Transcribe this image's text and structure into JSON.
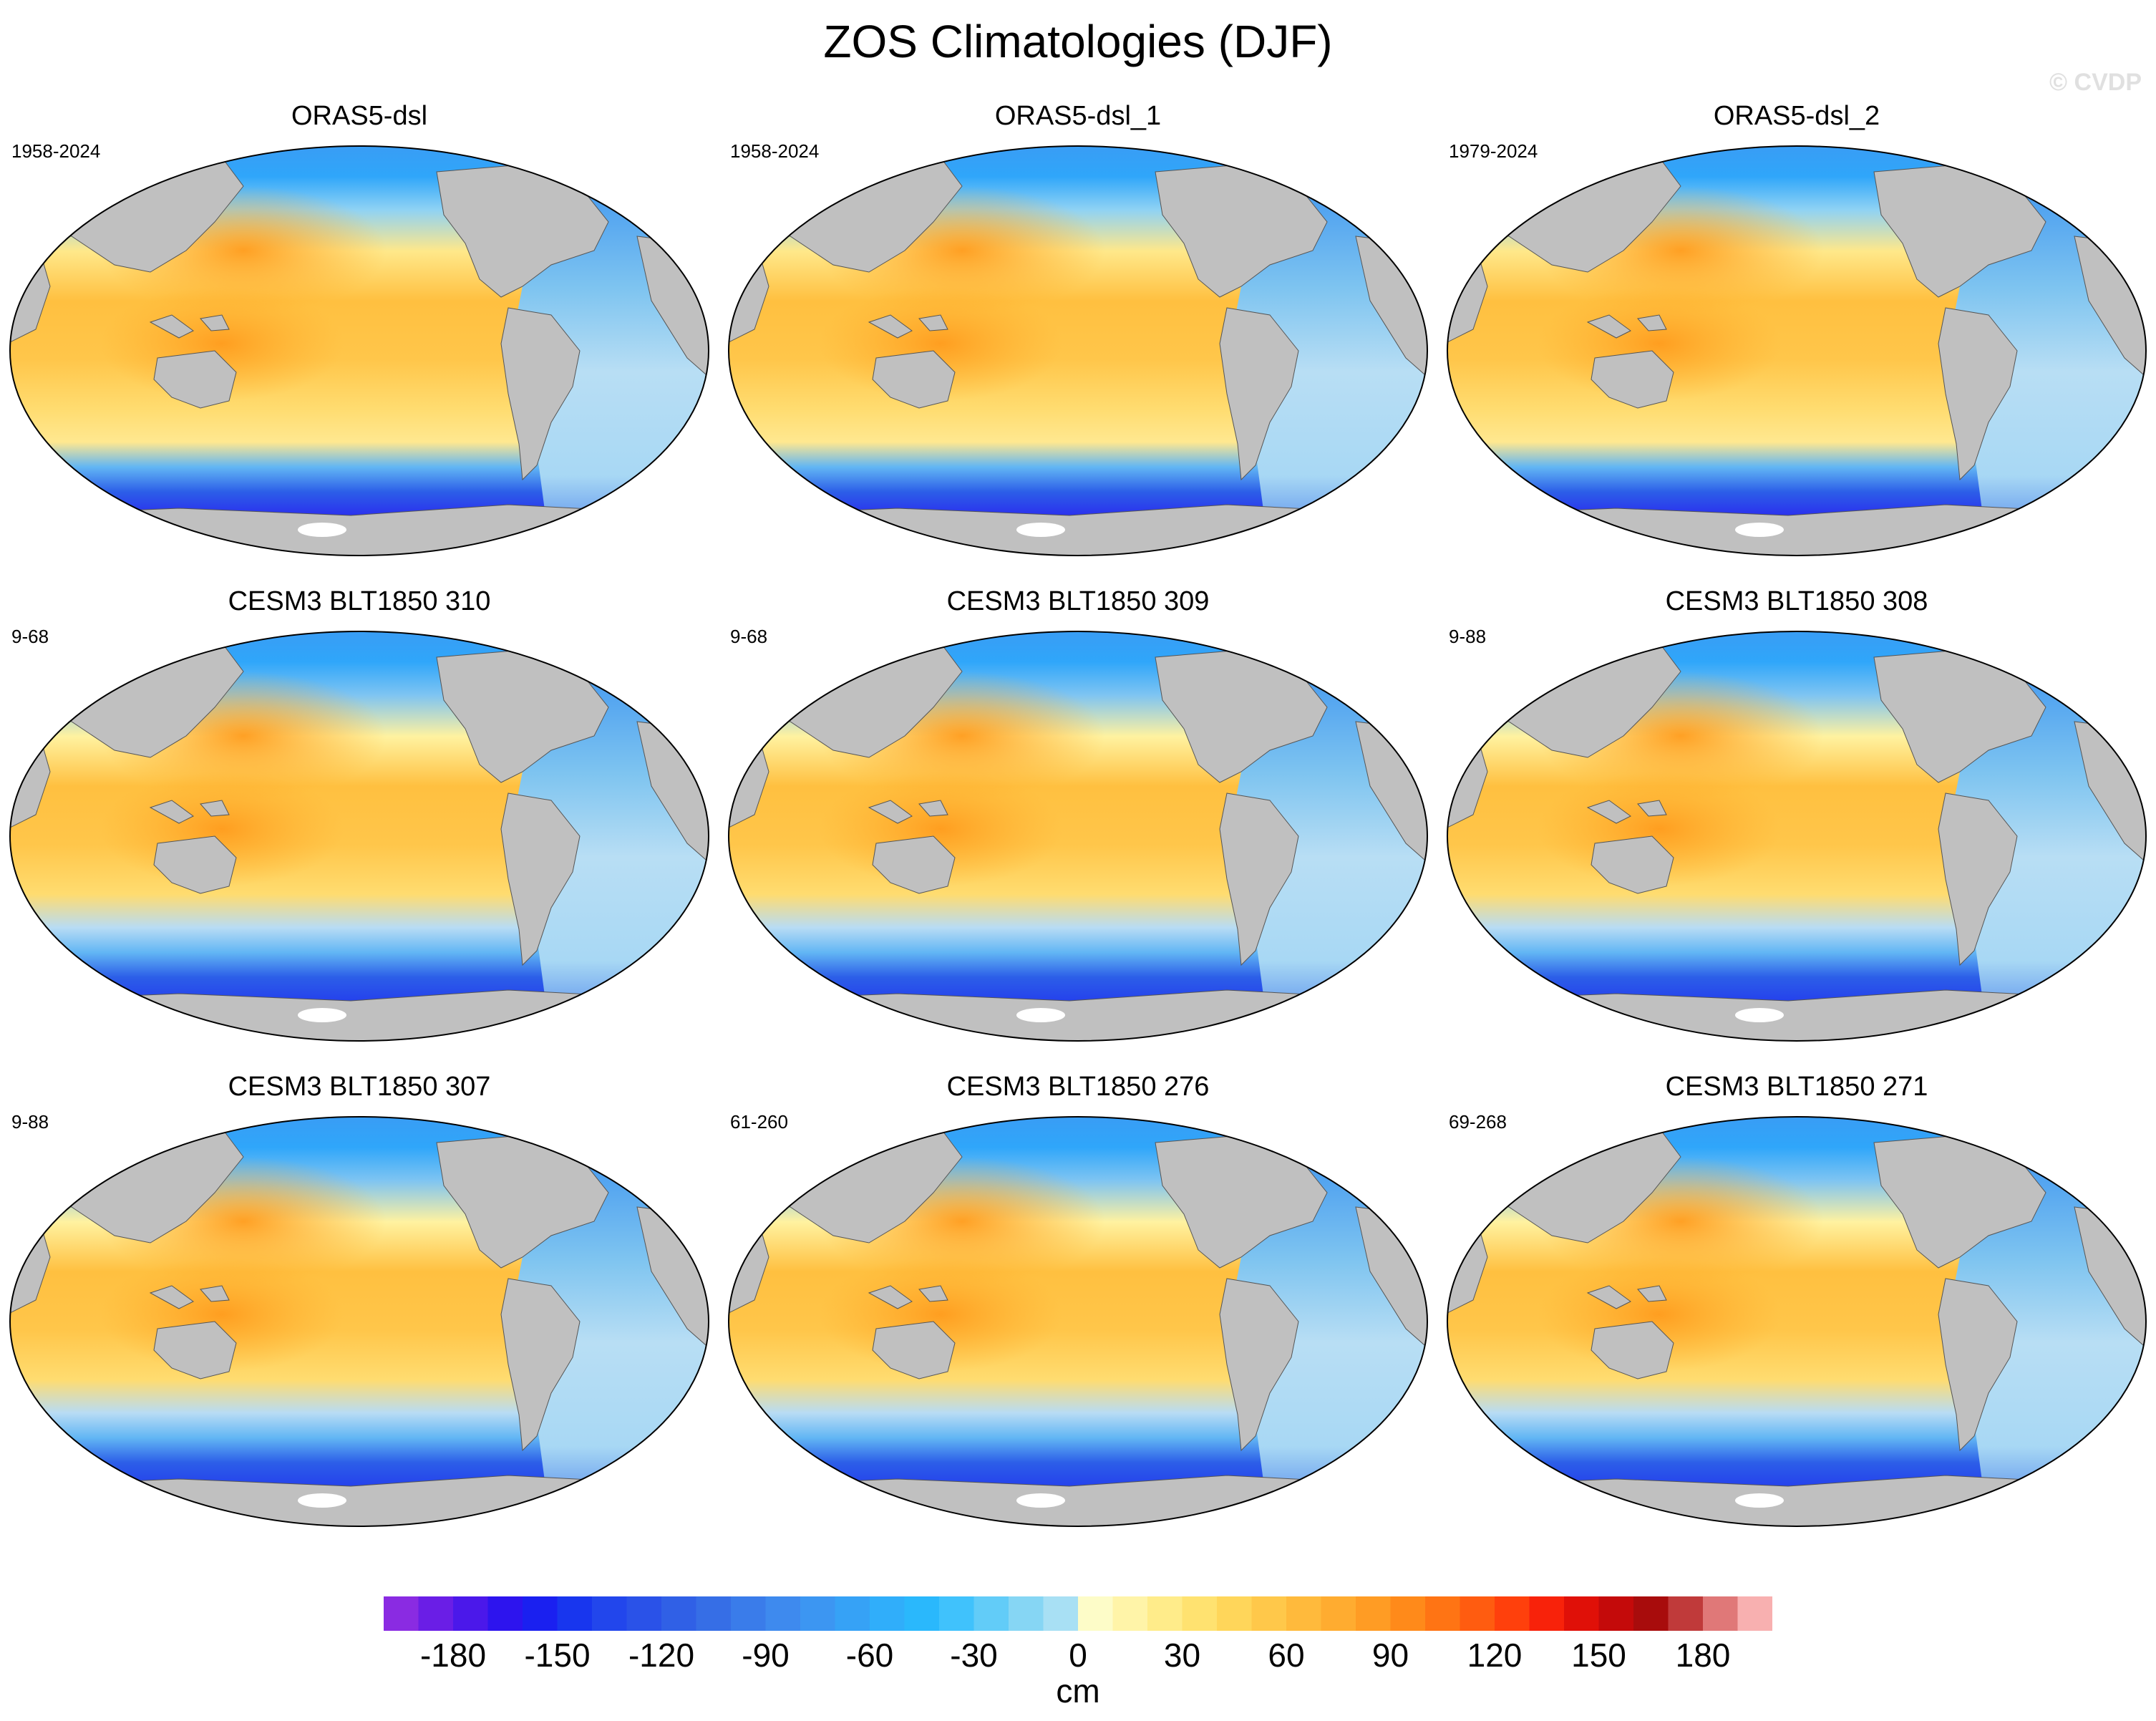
{
  "figure": {
    "title": "ZOS Climatologies (DJF)",
    "watermark": "© CVDP",
    "unit": "cm"
  },
  "panels": [
    {
      "title": "ORAS5-dsl",
      "years": "1958-2024",
      "kind": "obs"
    },
    {
      "title": "ORAS5-dsl_1",
      "years": "1958-2024",
      "kind": "obs"
    },
    {
      "title": "ORAS5-dsl_2",
      "years": "1979-2024",
      "kind": "obs"
    },
    {
      "title": "CESM3 BLT1850 310",
      "years": "9-68",
      "kind": "model"
    },
    {
      "title": "CESM3 BLT1850 309",
      "years": "9-68",
      "kind": "model"
    },
    {
      "title": "CESM3 BLT1850 308",
      "years": "9-88",
      "kind": "model"
    },
    {
      "title": "CESM3 BLT1850 307",
      "years": "9-88",
      "kind": "model"
    },
    {
      "title": "CESM3 BLT1850 276",
      "years": "61-260",
      "kind": "model"
    },
    {
      "title": "CESM3 BLT1850 271",
      "years": "69-268",
      "kind": "model"
    }
  ],
  "colorbar": {
    "min": -200,
    "max": 200,
    "step": 10,
    "tick_labels": [
      "-180",
      "-150",
      "-120",
      "-90",
      "-60",
      "-30",
      "0",
      "30",
      "60",
      "90",
      "120",
      "150",
      "180"
    ],
    "tick_values": [
      -180,
      -150,
      -120,
      -90,
      -60,
      -30,
      0,
      30,
      60,
      90,
      120,
      150,
      180
    ],
    "colors": [
      "#8a2be2",
      "#6a1ee6",
      "#4b18ea",
      "#2d14ee",
      "#1a20f0",
      "#1836ee",
      "#2246ec",
      "#2a52e8",
      "#3060e6",
      "#366ee6",
      "#3a7cea",
      "#3e8aee",
      "#3c96f2",
      "#36a2f6",
      "#30aefa",
      "#2ab8fc",
      "#40c2fc",
      "#62ccf8",
      "#86d6f4",
      "#a8e0f4",
      "#fdfcc8",
      "#fff4a8",
      "#ffec8a",
      "#ffe270",
      "#ffd65a",
      "#ffc84a",
      "#ffba3c",
      "#ffac30",
      "#ff9c24",
      "#ff8a1a",
      "#ff7414",
      "#ff5c10",
      "#ff400c",
      "#f8220a",
      "#e01008",
      "#c40a0a",
      "#a80c0c",
      "#c03a3a",
      "#e07878",
      "#f8b0b0"
    ],
    "land_color": "#c0c0c0",
    "missing_color": "#ffffff"
  }
}
